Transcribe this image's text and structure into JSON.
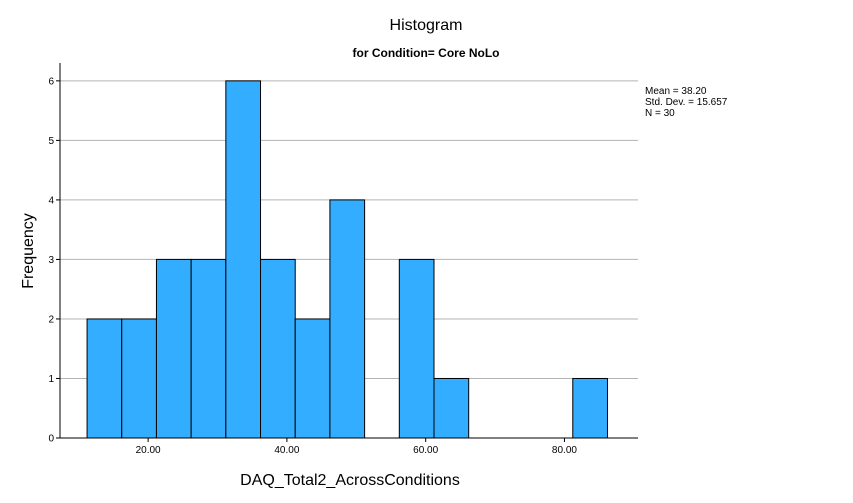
{
  "chart_data": {
    "type": "bar",
    "title": "Histogram",
    "subtitle": "for Condition= Core NoLo",
    "xlabel": "DAQ_Total2_AcrossConditions",
    "ylabel": "Frequency",
    "bin_width": 5,
    "bins": [
      {
        "start": 11.2,
        "count": 2
      },
      {
        "start": 16.2,
        "count": 2
      },
      {
        "start": 21.2,
        "count": 3
      },
      {
        "start": 26.2,
        "count": 3
      },
      {
        "start": 31.2,
        "count": 6
      },
      {
        "start": 36.2,
        "count": 3
      },
      {
        "start": 41.2,
        "count": 2
      },
      {
        "start": 46.2,
        "count": 4
      },
      {
        "start": 56.2,
        "count": 3
      },
      {
        "start": 61.2,
        "count": 1
      },
      {
        "start": 81.2,
        "count": 1
      }
    ],
    "xlim": [
      7.3,
      90.6
    ],
    "ylim": [
      0,
      6.3
    ],
    "x_ticks": [
      {
        "value": 20,
        "label": "20.00"
      },
      {
        "value": 40,
        "label": "40.00"
      },
      {
        "value": 60,
        "label": "60.00"
      },
      {
        "value": 80,
        "label": "80.00"
      }
    ],
    "y_ticks": [
      0,
      1,
      2,
      3,
      4,
      5,
      6
    ],
    "grid": "horizontal",
    "bar_color": "#33adff",
    "bar_edge_color": "#000000",
    "gridline_color": "#b3b3b3",
    "stats": {
      "mean": "Mean = 38.20",
      "sd": "Std. Dev. = 15.657",
      "n": "N = 30"
    }
  }
}
